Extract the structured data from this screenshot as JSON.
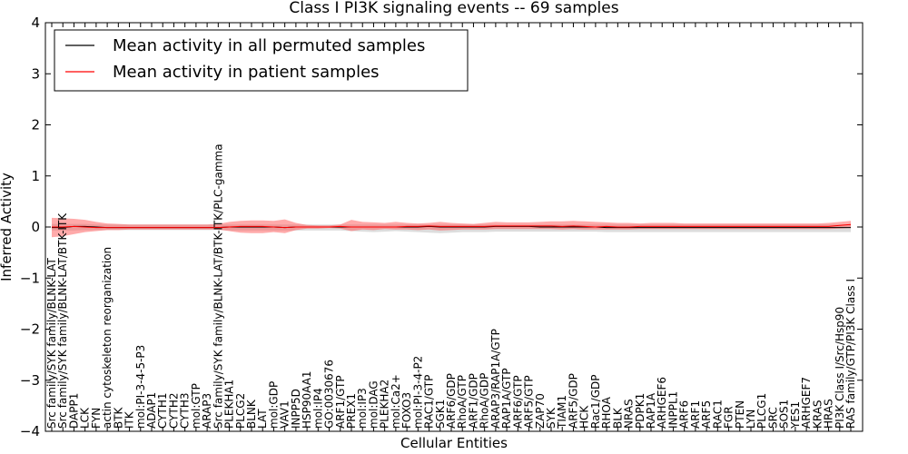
{
  "chart_data": {
    "type": "line",
    "title": "Class I PI3K signaling events -- 69 samples",
    "xlabel": "Cellular Entities",
    "ylabel": "Inferred Activity",
    "ylim": [
      -4,
      4
    ],
    "yticks": [
      "4",
      "3",
      "2",
      "1",
      "0",
      "−1",
      "−2",
      "−3",
      "−4"
    ],
    "ytick_values": [
      4,
      3,
      2,
      1,
      0,
      -1,
      -2,
      -3,
      -4
    ],
    "legend": {
      "location": "upper-left",
      "entries": [
        {
          "label": "Mean activity in all permuted samples",
          "color": "#000000"
        },
        {
          "label": "Mean activity in patient samples",
          "color": "#ff0000"
        }
      ]
    },
    "categories": [
      "Src family/SYK family/BLNK-LAT",
      "Src family/SYK family/BLNK-LAT/BTK-ITK",
      "DAPP1",
      "LCK",
      "FYN",
      "actin cytoskeleton reorganization",
      "BTK",
      "ITK",
      "mol:PI-3-4-5-P3",
      "ADAP1",
      "CYTH1",
      "CYTH2",
      "CYTH3",
      "mol:GTP",
      "ARAP3",
      "Src family/SYK family/BLNK-LAT/BTK-ITK/PLC-gamma",
      "PLEKHA1",
      "PLCG2",
      "BLNK",
      "LAT",
      "mol:GDP",
      "VAV1",
      "INPP5D",
      "HSP90AA1",
      "mol:IP4",
      "GO:0030676",
      "ARF1/GTP",
      "PREX1",
      "mol:IP3",
      "mol:DAG",
      "PLEKHA2",
      "mol:Ca2+",
      "FOXO3",
      "mol:PI-3-4-P2",
      "RAC1/GTP",
      "SGK1",
      "ARF6/GDP",
      "RhoA/GTP",
      "ARF1/GDP",
      "RhoA/GDP",
      "ARAP3/RAP1A/GTP",
      "RAP1A/GTP",
      "ARF6/GTP",
      "ARF5/GTP",
      "ZAP70",
      "SYK",
      "TIAM1",
      "ARF5/GDP",
      "HCK",
      "Rac1/GDP",
      "RHOA",
      "BLK",
      "NRAS",
      "PDPK1",
      "RAP1A",
      "ARHGEF6",
      "INPPL1",
      "ARF6",
      "ARF1",
      "ARF5",
      "RAC1",
      "FGR",
      "PTEN",
      "LYN",
      "PLCG1",
      "SRC",
      "SOS1",
      "YES1",
      "ARHGEF7",
      "KRAS",
      "HRAS",
      "PI3K Class I/Src/Hsp90",
      "RAS family/GTP/PI3K Class I"
    ],
    "series": [
      {
        "name": "Mean activity in patient samples",
        "color": "#ff0000",
        "values": [
          0.0,
          0.0,
          0.01,
          0.0,
          -0.01,
          -0.01,
          -0.01,
          -0.01,
          -0.01,
          -0.01,
          -0.01,
          -0.01,
          -0.01,
          -0.01,
          -0.01,
          -0.01,
          0.0,
          0.01,
          0.01,
          0.01,
          0.0,
          -0.01,
          0.0,
          0.0,
          0.0,
          0.0,
          0.01,
          0.0,
          0.0,
          0.0,
          0.0,
          0.0,
          0.01,
          0.01,
          0.02,
          0.01,
          0.01,
          0.01,
          0.01,
          0.01,
          0.02,
          0.02,
          0.02,
          0.02,
          0.02,
          0.02,
          0.01,
          0.02,
          0.01,
          0.0,
          0.01,
          0.0,
          0.0,
          0.01,
          0.01,
          0.01,
          0.01,
          0.01,
          0.01,
          0.01,
          0.01,
          0.01,
          0.01,
          0.01,
          0.01,
          0.01,
          0.01,
          0.01,
          0.01,
          0.01,
          0.01,
          0.03,
          0.05
        ],
        "band_upper": [
          0.18,
          0.17,
          0.16,
          0.14,
          0.1,
          0.07,
          0.06,
          0.05,
          0.05,
          0.05,
          0.05,
          0.05,
          0.05,
          0.05,
          0.05,
          0.06,
          0.1,
          0.12,
          0.13,
          0.13,
          0.12,
          0.15,
          0.08,
          0.04,
          0.03,
          0.03,
          0.05,
          0.14,
          0.1,
          0.09,
          0.08,
          0.1,
          0.08,
          0.07,
          0.08,
          0.1,
          0.08,
          0.07,
          0.06,
          0.08,
          0.1,
          0.09,
          0.09,
          0.09,
          0.1,
          0.11,
          0.11,
          0.12,
          0.11,
          0.1,
          0.09,
          0.08,
          0.08,
          0.07,
          0.08,
          0.08,
          0.08,
          0.07,
          0.07,
          0.07,
          0.07,
          0.07,
          0.07,
          0.07,
          0.07,
          0.07,
          0.07,
          0.07,
          0.07,
          0.07,
          0.08,
          0.1,
          0.12
        ],
        "band_lower": [
          -0.2,
          -0.18,
          -0.14,
          -0.1,
          -0.08,
          -0.06,
          -0.06,
          -0.05,
          -0.05,
          -0.05,
          -0.05,
          -0.05,
          -0.05,
          -0.05,
          -0.05,
          -0.05,
          -0.08,
          -0.11,
          -0.12,
          -0.12,
          -0.1,
          -0.12,
          -0.06,
          -0.03,
          -0.03,
          -0.02,
          -0.03,
          -0.08,
          -0.05,
          -0.06,
          -0.04,
          -0.05,
          -0.05,
          -0.06,
          -0.05,
          -0.07,
          -0.06,
          -0.05,
          -0.05,
          -0.05,
          -0.04,
          -0.04,
          -0.04,
          -0.04,
          -0.04,
          -0.04,
          -0.05,
          -0.04,
          -0.05,
          -0.05,
          -0.05,
          -0.05,
          -0.05,
          -0.04,
          -0.04,
          -0.04,
          -0.04,
          -0.04,
          -0.04,
          -0.04,
          -0.04,
          -0.04,
          -0.04,
          -0.04,
          -0.04,
          -0.04,
          -0.04,
          -0.04,
          -0.04,
          -0.04,
          -0.04,
          -0.03,
          -0.02
        ]
      },
      {
        "name": "Mean activity in all permuted samples",
        "color": "#000000",
        "values": [
          -0.01,
          -0.01,
          0.01,
          0.01,
          0.0,
          -0.01,
          -0.01,
          -0.01,
          -0.01,
          -0.01,
          -0.01,
          -0.01,
          -0.01,
          -0.01,
          -0.01,
          -0.01,
          0.0,
          0.0,
          0.0,
          0.0,
          0.0,
          -0.01,
          0.0,
          0.0,
          0.0,
          0.0,
          0.0,
          0.0,
          0.0,
          0.0,
          0.0,
          0.0,
          0.0,
          0.0,
          0.01,
          0.0,
          0.0,
          0.0,
          0.0,
          0.0,
          0.01,
          0.01,
          0.01,
          0.01,
          0.0,
          0.0,
          0.0,
          0.0,
          0.0,
          0.0,
          -0.01,
          -0.01,
          -0.01,
          -0.01,
          -0.01,
          -0.01,
          -0.01,
          -0.01,
          -0.01,
          -0.01,
          -0.01,
          -0.01,
          -0.01,
          -0.01,
          -0.01,
          -0.01,
          -0.01,
          -0.01,
          -0.01,
          -0.01,
          -0.01,
          -0.01,
          -0.01
        ],
        "band_upper": [
          0.06,
          0.06,
          0.06,
          0.06,
          0.05,
          0.05,
          0.05,
          0.05,
          0.05,
          0.05,
          0.05,
          0.05,
          0.05,
          0.05,
          0.05,
          0.05,
          0.05,
          0.05,
          0.05,
          0.05,
          0.05,
          0.05,
          0.05,
          0.05,
          0.05,
          0.05,
          0.05,
          0.05,
          0.05,
          0.05,
          0.05,
          0.05,
          0.05,
          0.05,
          0.05,
          0.05,
          0.05,
          0.05,
          0.05,
          0.05,
          0.05,
          0.05,
          0.05,
          0.05,
          0.05,
          0.05,
          0.05,
          0.05,
          0.05,
          0.05,
          0.05,
          0.05,
          0.05,
          0.05,
          0.05,
          0.05,
          0.05,
          0.05,
          0.05,
          0.05,
          0.05,
          0.05,
          0.05,
          0.05,
          0.05,
          0.05,
          0.05,
          0.05,
          0.05,
          0.05,
          0.05,
          0.05,
          0.05
        ],
        "band_lower": [
          -0.07,
          -0.07,
          -0.07,
          -0.06,
          -0.06,
          -0.06,
          -0.06,
          -0.06,
          -0.06,
          -0.06,
          -0.06,
          -0.06,
          -0.06,
          -0.06,
          -0.06,
          -0.06,
          -0.07,
          -0.07,
          -0.07,
          -0.07,
          -0.07,
          -0.07,
          -0.07,
          -0.07,
          -0.07,
          -0.07,
          -0.07,
          -0.08,
          -0.09,
          -0.1,
          -0.09,
          -0.08,
          -0.09,
          -0.1,
          -0.11,
          -0.12,
          -0.11,
          -0.1,
          -0.1,
          -0.1,
          -0.09,
          -0.09,
          -0.09,
          -0.09,
          -0.09,
          -0.09,
          -0.09,
          -0.09,
          -0.09,
          -0.09,
          -0.1,
          -0.1,
          -0.1,
          -0.1,
          -0.1,
          -0.1,
          -0.1,
          -0.1,
          -0.1,
          -0.1,
          -0.1,
          -0.1,
          -0.1,
          -0.1,
          -0.1,
          -0.1,
          -0.1,
          -0.1,
          -0.1,
          -0.1,
          -0.1,
          -0.1,
          -0.1
        ]
      }
    ]
  }
}
